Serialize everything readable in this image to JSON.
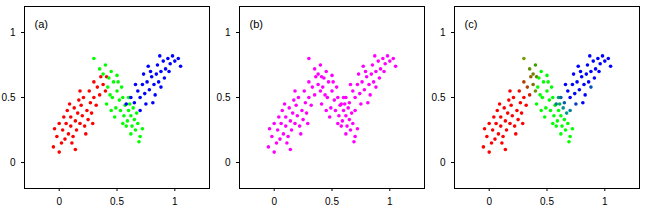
{
  "chart_data": [
    {
      "type": "scatter",
      "annotations": [
        "(a)"
      ],
      "x": [
        -0.05,
        0.0,
        0.02,
        -0.02,
        0.05,
        0.03,
        0.08,
        0.06,
        0.1,
        0.12,
        0.1,
        0.14,
        0.15,
        0.16,
        0.18,
        0.13,
        0.2,
        0.22,
        0.19,
        0.24,
        0.25,
        0.21,
        0.27,
        0.28,
        0.3,
        0.26,
        0.32,
        0.33,
        0.35,
        0.3,
        0.38,
        0.36,
        0.4,
        0.07,
        0.0,
        0.17,
        0.23,
        0.11,
        0.04,
        0.29,
        0.41,
        0.18,
        0.09,
        -0.04,
        0.14,
        0.3,
        0.35,
        0.4,
        0.38,
        0.43,
        0.45,
        0.42,
        0.47,
        0.5,
        0.46,
        0.52,
        0.49,
        0.55,
        0.53,
        0.57,
        0.56,
        0.6,
        0.59,
        0.62,
        0.63,
        0.65,
        0.66,
        0.68,
        0.7,
        0.61,
        0.54,
        0.48,
        0.44,
        0.58,
        0.64,
        0.51,
        0.67,
        0.72,
        0.41,
        0.55,
        0.6,
        0.69,
        0.5,
        0.45,
        0.62,
        0.58,
        0.62,
        0.65,
        0.68,
        0.7,
        0.72,
        0.74,
        0.76,
        0.78,
        0.8,
        0.82,
        0.79,
        0.84,
        0.86,
        0.85,
        0.88,
        0.9,
        0.92,
        0.94,
        0.96,
        0.98,
        1.0,
        1.03,
        0.75,
        0.7,
        0.83,
        0.88,
        0.66,
        0.73,
        0.91,
        0.95,
        0.81,
        0.77,
        0.87,
        1.05
      ],
      "values": [
        0.12,
        0.08,
        0.15,
        0.2,
        0.18,
        0.25,
        0.22,
        0.3,
        0.28,
        0.2,
        0.35,
        0.32,
        0.25,
        0.38,
        0.3,
        0.42,
        0.36,
        0.28,
        0.44,
        0.4,
        0.33,
        0.5,
        0.46,
        0.38,
        0.5,
        0.55,
        0.44,
        0.58,
        0.52,
        0.62,
        0.6,
        0.66,
        0.55,
        0.4,
        0.3,
        0.48,
        0.22,
        0.15,
        0.35,
        0.3,
        0.66,
        0.55,
        0.45,
        0.26,
        0.1,
        0.8,
        0.72,
        0.75,
        0.68,
        0.65,
        0.7,
        0.58,
        0.62,
        0.55,
        0.5,
        0.48,
        0.42,
        0.5,
        0.4,
        0.44,
        0.36,
        0.4,
        0.32,
        0.36,
        0.28,
        0.33,
        0.25,
        0.3,
        0.2,
        0.45,
        0.58,
        0.35,
        0.52,
        0.28,
        0.42,
        0.62,
        0.38,
        0.26,
        0.45,
        0.3,
        0.5,
        0.16,
        0.67,
        0.4,
        0.22,
        0.45,
        0.5,
        0.46,
        0.55,
        0.5,
        0.6,
        0.53,
        0.62,
        0.56,
        0.66,
        0.6,
        0.7,
        0.68,
        0.62,
        0.75,
        0.7,
        0.78,
        0.72,
        0.8,
        0.76,
        0.82,
        0.78,
        0.8,
        0.45,
        0.4,
        0.52,
        0.58,
        0.6,
        0.68,
        0.65,
        0.7,
        0.46,
        0.74,
        0.82,
        0.74
      ],
      "colors": [
        "#ff0000",
        "#ff0000",
        "#ff0000",
        "#ff0000",
        "#ff0000",
        "#ff0000",
        "#ff0000",
        "#ff0000",
        "#ff0000",
        "#ff0000",
        "#ff0000",
        "#ff0000",
        "#ff0000",
        "#ff0000",
        "#ff0000",
        "#ff0000",
        "#ff0000",
        "#ff0000",
        "#ff0000",
        "#ff0000",
        "#ff0000",
        "#ff0000",
        "#ff0000",
        "#ff0000",
        "#ff0000",
        "#ff0000",
        "#ff0000",
        "#ff0000",
        "#ff0000",
        "#ff0000",
        "#ff0000",
        "#ff0000",
        "#ff0000",
        "#ff0000",
        "#ff0000",
        "#ff0000",
        "#ff0000",
        "#ff0000",
        "#ff0000",
        "#ff0000",
        "#ff0000",
        "#ff0000",
        "#ff0000",
        "#ff0000",
        "#ff0000",
        "#00ff00",
        "#00ff00",
        "#00ff00",
        "#00ff00",
        "#00ff00",
        "#00ff00",
        "#00ff00",
        "#00ff00",
        "#00ff00",
        "#00ff00",
        "#00ff00",
        "#00ff00",
        "#00ff00",
        "#00ff00",
        "#00ff00",
        "#00ff00",
        "#00ff00",
        "#00ff00",
        "#00ff00",
        "#00ff00",
        "#00ff00",
        "#00ff00",
        "#00ff00",
        "#00ff00",
        "#00ff00",
        "#00ff00",
        "#00ff00",
        "#00ff00",
        "#00ff00",
        "#00ff00",
        "#00ff00",
        "#00ff00",
        "#00ff00",
        "#00ff00",
        "#00ff00",
        "#00ff00",
        "#00ff00",
        "#00ff00",
        "#00ff00",
        "#00ff00",
        "#0000ff",
        "#0000ff",
        "#0000ff",
        "#0000ff",
        "#0000ff",
        "#0000ff",
        "#0000ff",
        "#0000ff",
        "#0000ff",
        "#0000ff",
        "#0000ff",
        "#0000ff",
        "#0000ff",
        "#0000ff",
        "#0000ff",
        "#0000ff",
        "#0000ff",
        "#0000ff",
        "#0000ff",
        "#0000ff",
        "#0000ff",
        "#0000ff",
        "#0000ff",
        "#0000ff",
        "#0000ff",
        "#0000ff",
        "#0000ff",
        "#0000ff",
        "#0000ff",
        "#0000ff",
        "#0000ff",
        "#0000ff",
        "#0000ff",
        "#0000ff",
        "#0000ff"
      ],
      "xlim": [
        -0.3,
        1.3
      ],
      "ylim": [
        -0.2,
        1.2
      ],
      "xticks": [
        0,
        0.5,
        1
      ],
      "yticks": [
        0,
        0.5,
        1
      ]
    },
    {
      "type": "scatter",
      "annotations": [
        "(b)"
      ],
      "x": [
        -0.05,
        0.0,
        0.02,
        -0.02,
        0.05,
        0.03,
        0.08,
        0.06,
        0.1,
        0.12,
        0.1,
        0.14,
        0.15,
        0.16,
        0.18,
        0.13,
        0.2,
        0.22,
        0.19,
        0.24,
        0.25,
        0.21,
        0.27,
        0.28,
        0.3,
        0.26,
        0.32,
        0.33,
        0.35,
        0.3,
        0.38,
        0.36,
        0.4,
        0.07,
        0.0,
        0.17,
        0.23,
        0.11,
        0.04,
        0.29,
        0.41,
        0.18,
        0.09,
        -0.04,
        0.14,
        0.3,
        0.35,
        0.4,
        0.38,
        0.43,
        0.45,
        0.42,
        0.47,
        0.5,
        0.46,
        0.52,
        0.49,
        0.55,
        0.53,
        0.57,
        0.56,
        0.6,
        0.59,
        0.62,
        0.63,
        0.65,
        0.66,
        0.68,
        0.7,
        0.61,
        0.54,
        0.48,
        0.44,
        0.58,
        0.64,
        0.51,
        0.67,
        0.72,
        0.41,
        0.55,
        0.6,
        0.69,
        0.5,
        0.45,
        0.62,
        0.58,
        0.62,
        0.65,
        0.68,
        0.7,
        0.72,
        0.74,
        0.76,
        0.78,
        0.8,
        0.82,
        0.79,
        0.84,
        0.86,
        0.85,
        0.88,
        0.9,
        0.92,
        0.94,
        0.96,
        0.98,
        1.0,
        1.03,
        0.75,
        0.7,
        0.83,
        0.88,
        0.66,
        0.73,
        0.91,
        0.95,
        0.81,
        0.77,
        0.87,
        1.05
      ],
      "values": [
        0.12,
        0.08,
        0.15,
        0.2,
        0.18,
        0.25,
        0.22,
        0.3,
        0.28,
        0.2,
        0.35,
        0.32,
        0.25,
        0.38,
        0.3,
        0.42,
        0.36,
        0.28,
        0.44,
        0.4,
        0.33,
        0.5,
        0.46,
        0.38,
        0.5,
        0.55,
        0.44,
        0.58,
        0.52,
        0.62,
        0.6,
        0.66,
        0.55,
        0.4,
        0.3,
        0.48,
        0.22,
        0.15,
        0.35,
        0.3,
        0.66,
        0.55,
        0.45,
        0.26,
        0.1,
        0.8,
        0.72,
        0.75,
        0.68,
        0.65,
        0.7,
        0.58,
        0.62,
        0.55,
        0.5,
        0.48,
        0.42,
        0.5,
        0.4,
        0.44,
        0.36,
        0.4,
        0.32,
        0.36,
        0.28,
        0.33,
        0.25,
        0.3,
        0.2,
        0.45,
        0.58,
        0.35,
        0.52,
        0.28,
        0.42,
        0.62,
        0.38,
        0.26,
        0.45,
        0.3,
        0.5,
        0.16,
        0.67,
        0.4,
        0.22,
        0.45,
        0.5,
        0.46,
        0.55,
        0.5,
        0.6,
        0.53,
        0.62,
        0.56,
        0.66,
        0.6,
        0.7,
        0.68,
        0.62,
        0.75,
        0.7,
        0.78,
        0.72,
        0.8,
        0.76,
        0.82,
        0.78,
        0.8,
        0.45,
        0.4,
        0.52,
        0.58,
        0.6,
        0.68,
        0.65,
        0.7,
        0.46,
        0.74,
        0.82,
        0.74
      ],
      "color": "#ff00ff",
      "xlim": [
        -0.3,
        1.3
      ],
      "ylim": [
        -0.2,
        1.2
      ],
      "xticks": [
        0,
        0.5,
        1
      ],
      "yticks": [
        0,
        0.5,
        1
      ]
    },
    {
      "type": "scatter",
      "annotations": [
        "(c)"
      ],
      "x": [
        -0.05,
        0.0,
        0.02,
        -0.02,
        0.05,
        0.03,
        0.08,
        0.06,
        0.1,
        0.12,
        0.1,
        0.14,
        0.15,
        0.16,
        0.18,
        0.13,
        0.2,
        0.22,
        0.19,
        0.24,
        0.25,
        0.21,
        0.27,
        0.28,
        0.3,
        0.26,
        0.32,
        0.33,
        0.35,
        0.3,
        0.38,
        0.36,
        0.4,
        0.07,
        0.0,
        0.17,
        0.23,
        0.11,
        0.04,
        0.29,
        0.41,
        0.18,
        0.09,
        -0.04,
        0.14,
        0.3,
        0.35,
        0.4,
        0.38,
        0.43,
        0.45,
        0.42,
        0.47,
        0.5,
        0.46,
        0.52,
        0.49,
        0.55,
        0.53,
        0.57,
        0.56,
        0.6,
        0.59,
        0.62,
        0.63,
        0.65,
        0.66,
        0.68,
        0.7,
        0.61,
        0.54,
        0.48,
        0.44,
        0.58,
        0.64,
        0.51,
        0.67,
        0.72,
        0.41,
        0.55,
        0.6,
        0.69,
        0.5,
        0.45,
        0.62,
        0.58,
        0.62,
        0.65,
        0.68,
        0.7,
        0.72,
        0.74,
        0.76,
        0.78,
        0.8,
        0.82,
        0.79,
        0.84,
        0.86,
        0.85,
        0.88,
        0.9,
        0.92,
        0.94,
        0.96,
        0.98,
        1.0,
        1.03,
        0.75,
        0.7,
        0.83,
        0.88,
        0.66,
        0.73,
        0.91,
        0.95,
        0.81,
        0.77,
        0.87,
        1.05
      ],
      "values": [
        0.12,
        0.08,
        0.15,
        0.2,
        0.18,
        0.25,
        0.22,
        0.3,
        0.28,
        0.2,
        0.35,
        0.32,
        0.25,
        0.38,
        0.3,
        0.42,
        0.36,
        0.28,
        0.44,
        0.4,
        0.33,
        0.5,
        0.46,
        0.38,
        0.5,
        0.55,
        0.44,
        0.58,
        0.52,
        0.62,
        0.6,
        0.66,
        0.55,
        0.4,
        0.3,
        0.48,
        0.22,
        0.15,
        0.35,
        0.3,
        0.66,
        0.55,
        0.45,
        0.26,
        0.1,
        0.8,
        0.72,
        0.75,
        0.68,
        0.65,
        0.7,
        0.58,
        0.62,
        0.55,
        0.5,
        0.48,
        0.42,
        0.5,
        0.4,
        0.44,
        0.36,
        0.4,
        0.32,
        0.36,
        0.28,
        0.33,
        0.25,
        0.3,
        0.2,
        0.45,
        0.58,
        0.35,
        0.52,
        0.28,
        0.42,
        0.62,
        0.38,
        0.26,
        0.45,
        0.3,
        0.5,
        0.16,
        0.67,
        0.4,
        0.22,
        0.45,
        0.5,
        0.46,
        0.55,
        0.5,
        0.6,
        0.53,
        0.62,
        0.56,
        0.66,
        0.6,
        0.7,
        0.68,
        0.62,
        0.75,
        0.7,
        0.78,
        0.72,
        0.8,
        0.76,
        0.82,
        0.78,
        0.8,
        0.45,
        0.4,
        0.52,
        0.58,
        0.6,
        0.68,
        0.65,
        0.7,
        0.46,
        0.74,
        0.82,
        0.74
      ],
      "colors": [
        "#ff0000",
        "#ff0000",
        "#ff0000",
        "#ff0000",
        "#ff0000",
        "#ff0000",
        "#ff0000",
        "#ff0000",
        "#ff0000",
        "#ff0000",
        "#ff0000",
        "#ff0000",
        "#ff0000",
        "#ff0000",
        "#ff0000",
        "#ff0000",
        "#ff0000",
        "#ff0000",
        "#ff0000",
        "#ff0000",
        "#ff0000",
        "#ff0000",
        "#ff0000",
        "#ff0000",
        "#ff0000",
        "#e01000",
        "#ff0000",
        "#b04000",
        "#d02000",
        "#b04000",
        "#807000",
        "#906000",
        "#709000",
        "#ff0000",
        "#ff0000",
        "#ff0000",
        "#ff0000",
        "#ff0000",
        "#ff0000",
        "#ff0000",
        "#608000",
        "#ff0000",
        "#ff0000",
        "#ff0000",
        "#ff0000",
        "#70a000",
        "#609000",
        "#40a000",
        "#708000",
        "#00ff00",
        "#00ff00",
        "#00ff00",
        "#00ff00",
        "#00ff00",
        "#00ff00",
        "#00ff00",
        "#00ff00",
        "#00ff00",
        "#00ff00",
        "#00ff00",
        "#00ff00",
        "#00ff00",
        "#00ff00",
        "#00ff00",
        "#00ff00",
        "#00ff00",
        "#00ff00",
        "#00ff00",
        "#00ff00",
        "#00b060",
        "#00ff00",
        "#00ff00",
        "#00ff00",
        "#00ff00",
        "#009090",
        "#00ff00",
        "#00a080",
        "#00ff00",
        "#00ff00",
        "#00ff00",
        "#00a070",
        "#00ff00",
        "#00ff00",
        "#00ff00",
        "#00ff00",
        "#008080",
        "#0060a0",
        "#0060b0",
        "#0000ff",
        "#0000ff",
        "#0000ff",
        "#0000ff",
        "#0000ff",
        "#0000ff",
        "#0000ff",
        "#0000ff",
        "#0000ff",
        "#0000ff",
        "#0000ff",
        "#0000ff",
        "#0000ff",
        "#0000ff",
        "#0000ff",
        "#0000ff",
        "#0000ff",
        "#0000ff",
        "#0000ff",
        "#0000ff",
        "#0040c0",
        "#0080a0",
        "#0000ff",
        "#0050c0",
        "#0000ff",
        "#0000ff",
        "#0000ff",
        "#0000ff",
        "#0000ff",
        "#0000ff",
        "#0000ff",
        "#0000ff"
      ],
      "xlim": [
        -0.3,
        1.3
      ],
      "ylim": [
        -0.2,
        1.2
      ],
      "xticks": [
        0,
        0.5,
        1
      ],
      "yticks": [
        0,
        0.5,
        1
      ]
    }
  ]
}
